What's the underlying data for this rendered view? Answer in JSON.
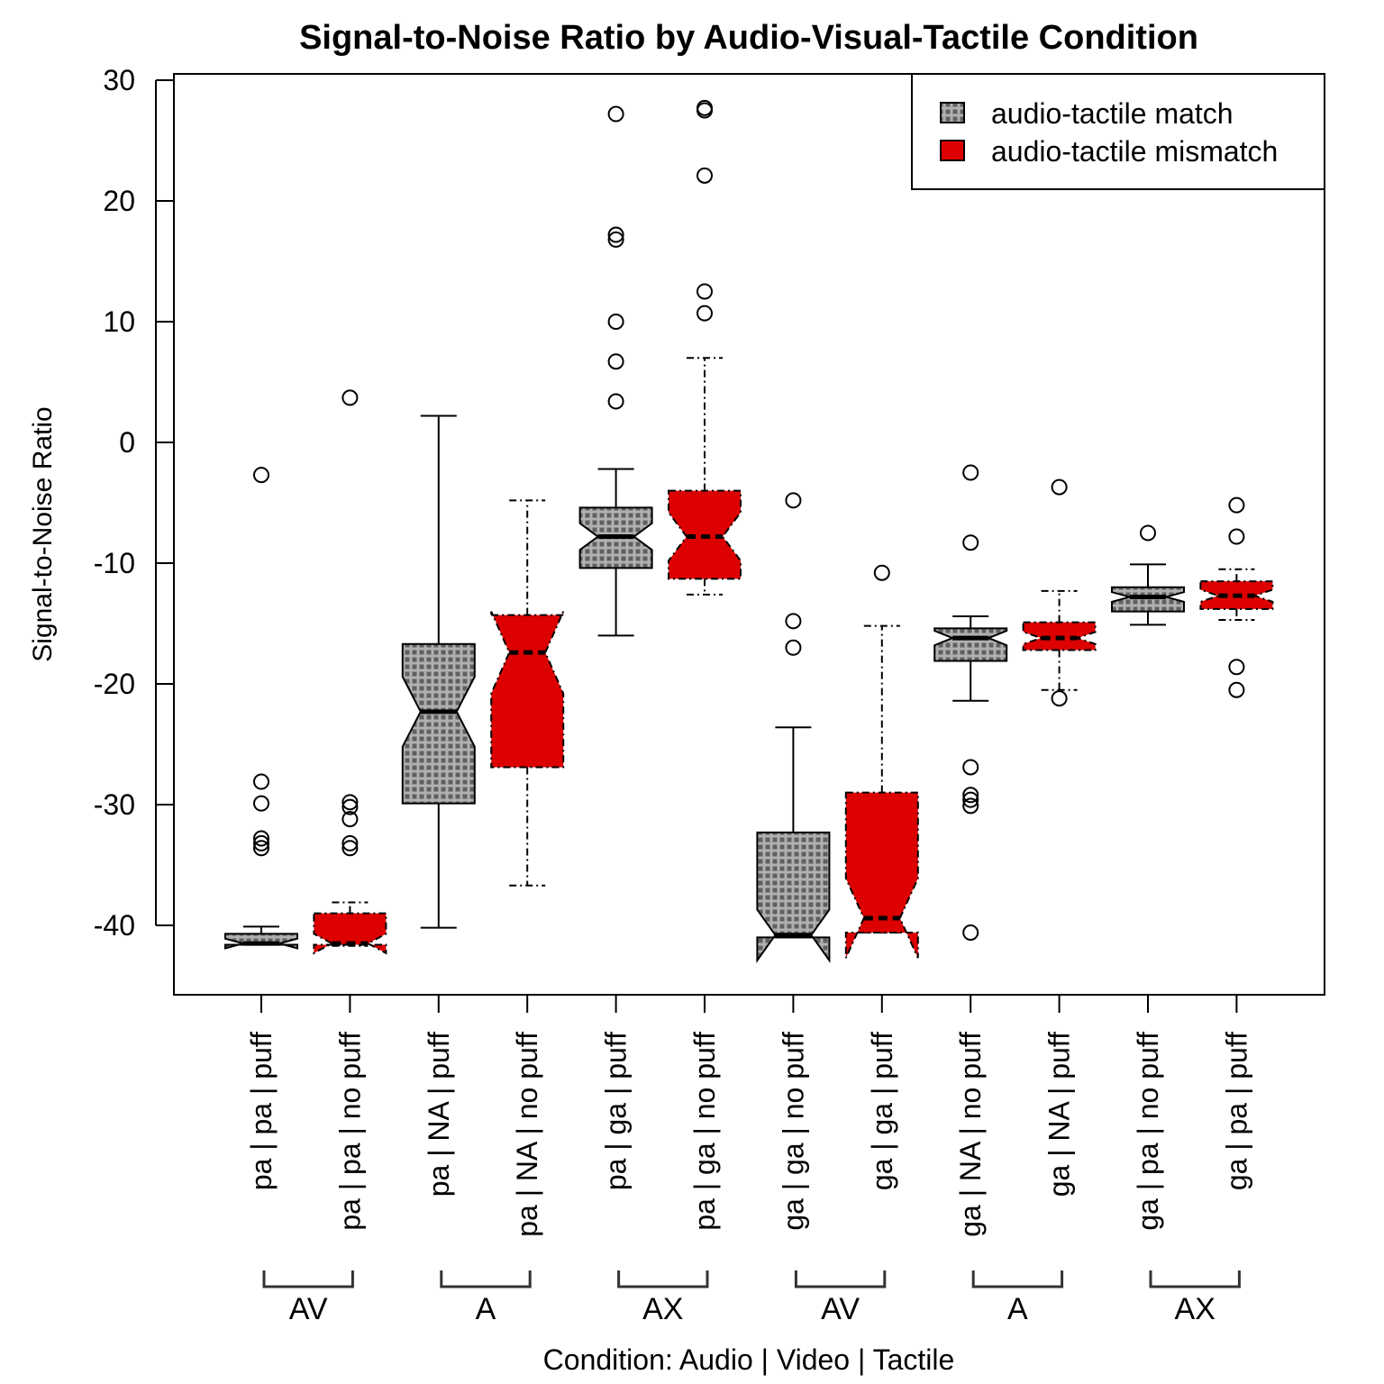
{
  "chart_data": {
    "type": "boxplot",
    "title": "Signal-to-Noise Ratio by Audio-Visual-Tactile Condition",
    "xlabel": "Condition: Audio | Video | Tactile",
    "ylabel": "Signal-to-Noise Ratio",
    "ylim": [
      -46,
      31
    ],
    "yticks": [
      30,
      20,
      10,
      0,
      -10,
      -20,
      -30,
      -40
    ],
    "ytick_labels": [
      "30",
      "20",
      "10",
      "0",
      "-10",
      "-20",
      "-30",
      "-40"
    ],
    "grid": false,
    "notched": true,
    "legend": {
      "position": "top-right",
      "entries": [
        {
          "label": "audio-tactile match",
          "color": "#808080",
          "pattern": "grid"
        },
        {
          "label": "audio-tactile mismatch",
          "color": "#dd0000",
          "pattern": "solid"
        }
      ]
    },
    "groups": [
      {
        "label": "AV",
        "span": [
          0,
          1
        ]
      },
      {
        "label": "A",
        "span": [
          2,
          3
        ]
      },
      {
        "label": "AX",
        "span": [
          4,
          5
        ]
      },
      {
        "label": "AV",
        "span": [
          6,
          7
        ]
      },
      {
        "label": "A",
        "span": [
          8,
          9
        ]
      },
      {
        "label": "AX",
        "span": [
          10,
          11
        ]
      }
    ],
    "boxes": [
      {
        "label": "pa | pa | puff",
        "series": "audio-tactile match",
        "whisker_low": -41.6,
        "q1": -41.6,
        "median": -41.5,
        "q3": -40.7,
        "whisker_high": -40.1,
        "notch": [
          -41.9,
          -41.1
        ],
        "outliers": [
          -2.7,
          -28.1,
          -29.9,
          -32.8,
          -33.2,
          -33.6
        ]
      },
      {
        "label": "pa | pa | no puff",
        "series": "audio-tactile mismatch",
        "whisker_low": -41.7,
        "q1": -41.6,
        "median": -41.5,
        "q3": -39.0,
        "whisker_high": -38.1,
        "notch": [
          -42.3,
          -40.7
        ],
        "outliers": [
          3.7,
          -29.8,
          -30.2,
          -31.2,
          -33.2,
          -33.6
        ]
      },
      {
        "label": "pa | NA | puff",
        "series": "audio-tactile match",
        "whisker_low": -40.2,
        "q1": -29.9,
        "median": -22.3,
        "q3": -16.7,
        "whisker_high": 2.2,
        "notch": [
          -25.2,
          -19.4
        ],
        "outliers": []
      },
      {
        "label": "pa | NA | no puff",
        "series": "audio-tactile mismatch",
        "whisker_low": -36.7,
        "q1": -26.9,
        "median": -17.4,
        "q3": -14.3,
        "whisker_high": -4.8,
        "notch": [
          -20.8,
          -14.0
        ],
        "outliers": []
      },
      {
        "label": "pa | ga | puff",
        "series": "audio-tactile match",
        "whisker_low": -16.0,
        "q1": -10.4,
        "median": -7.8,
        "q3": -5.4,
        "whisker_high": -2.2,
        "notch": [
          -8.9,
          -6.7
        ],
        "outliers": [
          27.2,
          17.2,
          16.8,
          10.0,
          6.7,
          3.4
        ]
      },
      {
        "label": "pa | ga | no puff",
        "series": "audio-tactile mismatch",
        "whisker_low": -12.6,
        "q1": -11.3,
        "median": -7.8,
        "q3": -4.0,
        "whisker_high": 7.0,
        "notch": [
          -9.8,
          -5.8
        ],
        "outliers": [
          27.7,
          27.5,
          22.1,
          12.5,
          10.7
        ]
      },
      {
        "label": "ga | ga | no puff",
        "series": "audio-tactile match",
        "whisker_low": -41.0,
        "q1": -41.0,
        "median": -40.8,
        "q3": -32.3,
        "whisker_high": -23.6,
        "notch": [
          -42.9,
          -38.7
        ],
        "outliers": [
          -4.8,
          -14.8,
          -17.0
        ]
      },
      {
        "label": "ga | ga | puff",
        "series": "audio-tactile mismatch",
        "whisker_low": -40.6,
        "q1": -40.6,
        "median": -39.4,
        "q3": -29.0,
        "whisker_high": -15.2,
        "notch": [
          -42.7,
          -36.1
        ],
        "outliers": [
          -10.8
        ]
      },
      {
        "label": "ga | NA | no puff",
        "series": "audio-tactile match",
        "whisker_low": -21.4,
        "q1": -18.1,
        "median": -16.2,
        "q3": -15.4,
        "whisker_high": -14.4,
        "notch": [
          -16.8,
          -15.6
        ],
        "outliers": [
          -2.5,
          -8.3,
          -26.9,
          -29.2,
          -29.6,
          -30.1,
          -40.6
        ]
      },
      {
        "label": "ga | NA | puff",
        "series": "audio-tactile mismatch",
        "whisker_low": -20.5,
        "q1": -17.2,
        "median": -16.2,
        "q3": -14.9,
        "whisker_high": -12.3,
        "notch": [
          -16.7,
          -15.7
        ],
        "outliers": [
          -3.7,
          -21.2
        ]
      },
      {
        "label": "ga | pa | no puff",
        "series": "audio-tactile match",
        "whisker_low": -15.1,
        "q1": -14.0,
        "median": -12.8,
        "q3": -12.0,
        "whisker_high": -10.1,
        "notch": [
          -13.2,
          -12.4
        ],
        "outliers": [
          -7.5
        ]
      },
      {
        "label": "ga | pa | puff",
        "series": "audio-tactile mismatch",
        "whisker_low": -14.7,
        "q1": -13.8,
        "median": -12.7,
        "q3": -11.5,
        "whisker_high": -10.5,
        "notch": [
          -13.2,
          -12.2
        ],
        "outliers": [
          -5.2,
          -7.8,
          -18.6,
          -20.5
        ]
      }
    ]
  }
}
